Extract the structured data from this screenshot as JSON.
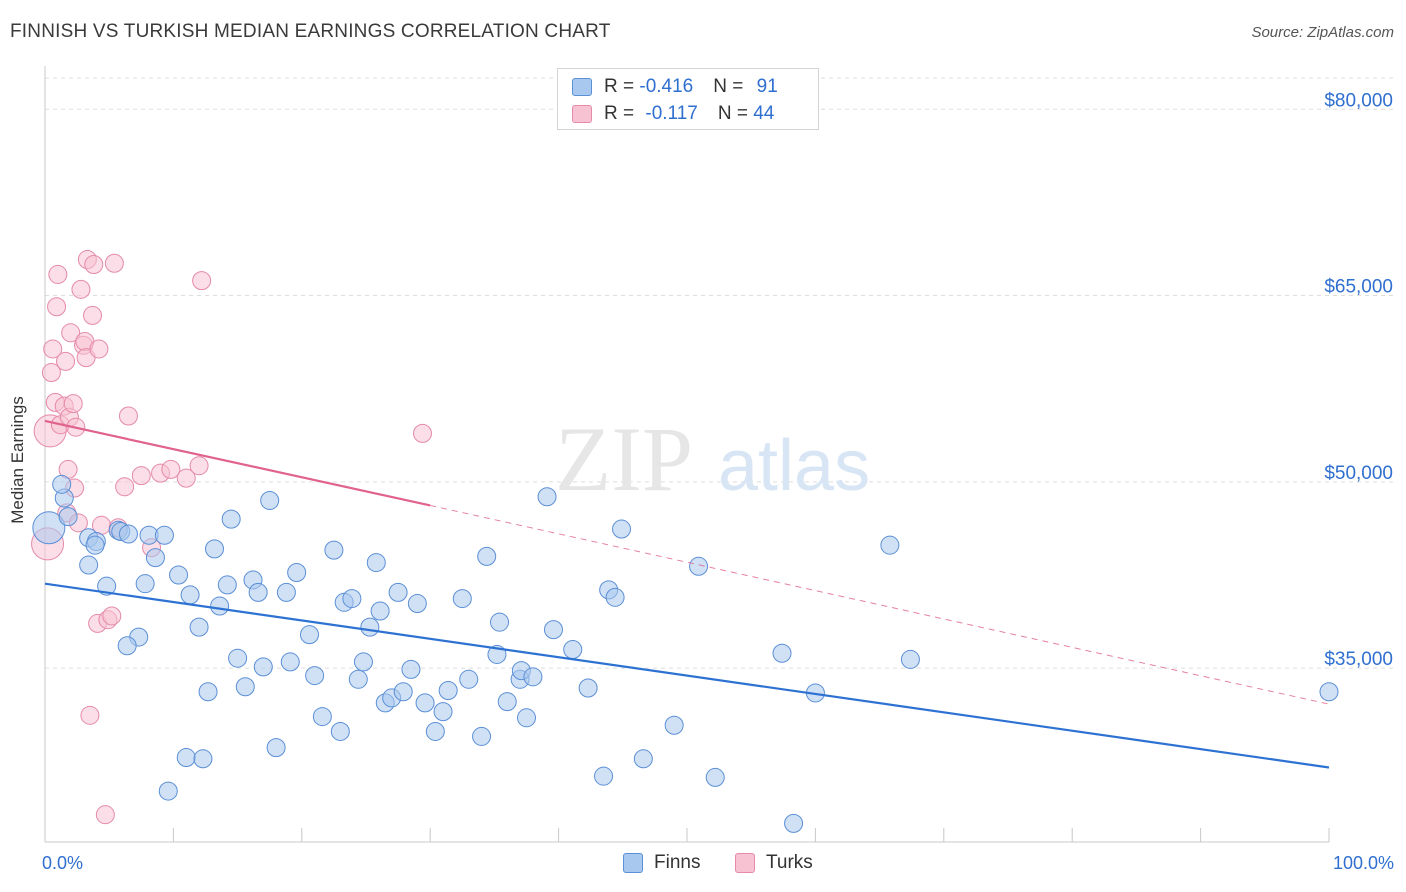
{
  "title": "FINNISH VS TURKISH MEDIAN EARNINGS CORRELATION CHART",
  "source": "Source: ZipAtlas.com",
  "colors": {
    "finns_fill": "#a9c8ef",
    "finns_stroke": "#5b8fd6",
    "finns_line": "#2d72d2",
    "turks_fill": "#f7c3d3",
    "turks_stroke": "#e58aa8",
    "turks_line": "#e0628d",
    "axis_label": "#2f6fd0",
    "grid": "#dddddd"
  },
  "legend": {
    "finns": {
      "r_label": "R = ",
      "r_value": "-0.416",
      "n_label": "N = ",
      "n_value": "91"
    },
    "turks": {
      "r_label": "R = ",
      "r_value": "-0.117",
      "n_label": "N = ",
      "n_value": "44"
    }
  },
  "chart_data": {
    "type": "scatter",
    "xlabel": "",
    "ylabel": "Median Earnings",
    "xlim": [
      0,
      100
    ],
    "ylim": [
      21000,
      83000
    ],
    "x_tick_labels": [
      "0.0%",
      "100.0%"
    ],
    "y_ticks": [
      35000,
      50000,
      65000,
      80000
    ],
    "y_tick_labels": [
      "$35,000",
      "$50,000",
      "$65,000",
      "$80,000"
    ],
    "grid": true,
    "legend_position": "top-center",
    "watermark": "ZIPatlas",
    "series": [
      {
        "name": "Finns",
        "trend": {
          "x": [
            0,
            100
          ],
          "y": [
            41800,
            27000
          ],
          "style": "solid"
        },
        "points": [
          [
            0.3,
            46300
          ],
          [
            1.5,
            48700
          ],
          [
            1.3,
            49800
          ],
          [
            1.8,
            47200
          ],
          [
            3.4,
            43300
          ],
          [
            3.4,
            45500
          ],
          [
            4.0,
            45200
          ],
          [
            3.9,
            44900
          ],
          [
            4.8,
            41600
          ],
          [
            5.7,
            46100
          ],
          [
            5.9,
            46000
          ],
          [
            6.5,
            45800
          ],
          [
            7.3,
            37500
          ],
          [
            6.4,
            36800
          ],
          [
            7.8,
            41800
          ],
          [
            8.1,
            45700
          ],
          [
            8.6,
            43900
          ],
          [
            9.3,
            45700
          ],
          [
            9.6,
            25100
          ],
          [
            10.4,
            42500
          ],
          [
            11.0,
            27800
          ],
          [
            11.3,
            40900
          ],
          [
            12.0,
            38300
          ],
          [
            12.3,
            27700
          ],
          [
            12.7,
            33100
          ],
          [
            13.2,
            44600
          ],
          [
            13.6,
            40000
          ],
          [
            14.2,
            41700
          ],
          [
            14.5,
            47000
          ],
          [
            15.0,
            35800
          ],
          [
            15.6,
            33500
          ],
          [
            16.2,
            42100
          ],
          [
            16.6,
            41100
          ],
          [
            17.0,
            35100
          ],
          [
            17.5,
            48500
          ],
          [
            18.0,
            28600
          ],
          [
            18.8,
            41100
          ],
          [
            19.1,
            35500
          ],
          [
            19.6,
            42700
          ],
          [
            20.6,
            37700
          ],
          [
            21.0,
            34400
          ],
          [
            21.6,
            31100
          ],
          [
            22.5,
            44500
          ],
          [
            23.0,
            29900
          ],
          [
            23.3,
            40300
          ],
          [
            23.9,
            40600
          ],
          [
            24.4,
            34100
          ],
          [
            24.8,
            35500
          ],
          [
            25.3,
            38300
          ],
          [
            25.8,
            43500
          ],
          [
            26.1,
            39600
          ],
          [
            26.5,
            32200
          ],
          [
            27.0,
            32600
          ],
          [
            27.5,
            41100
          ],
          [
            27.9,
            33100
          ],
          [
            28.5,
            34900
          ],
          [
            29.0,
            40200
          ],
          [
            29.6,
            32200
          ],
          [
            30.4,
            29900
          ],
          [
            31.0,
            31500
          ],
          [
            31.4,
            33200
          ],
          [
            32.5,
            40600
          ],
          [
            33.0,
            34100
          ],
          [
            34.0,
            29500
          ],
          [
            34.4,
            44000
          ],
          [
            35.2,
            36100
          ],
          [
            35.4,
            38700
          ],
          [
            36.0,
            32300
          ],
          [
            37.0,
            34100
          ],
          [
            37.1,
            34800
          ],
          [
            37.5,
            31000
          ],
          [
            38.0,
            34300
          ],
          [
            39.1,
            48800
          ],
          [
            39.6,
            38100
          ],
          [
            41.1,
            36500
          ],
          [
            42.3,
            33400
          ],
          [
            43.5,
            26300
          ],
          [
            43.9,
            41300
          ],
          [
            44.4,
            40700
          ],
          [
            44.9,
            46200
          ],
          [
            46.6,
            27700
          ],
          [
            49.0,
            30400
          ],
          [
            50.9,
            43200
          ],
          [
            52.2,
            26200
          ],
          [
            57.4,
            36200
          ],
          [
            58.3,
            22500
          ],
          [
            60.0,
            33000
          ],
          [
            65.8,
            44900
          ],
          [
            67.4,
            35700
          ],
          [
            100.0,
            33100
          ]
        ]
      },
      {
        "name": "Turks",
        "trend": {
          "x": [
            0,
            30
          ],
          "y": [
            54900,
            48100
          ],
          "x_dashed": [
            30,
            100
          ],
          "y_dashed": [
            48100,
            32100
          ],
          "style": "solid+dashed"
        },
        "points": [
          [
            0.2,
            45000
          ],
          [
            0.4,
            54100
          ],
          [
            0.5,
            58800
          ],
          [
            0.6,
            60700
          ],
          [
            0.8,
            56400
          ],
          [
            0.9,
            64100
          ],
          [
            1.0,
            66700
          ],
          [
            1.2,
            54600
          ],
          [
            1.5,
            56100
          ],
          [
            1.6,
            59700
          ],
          [
            1.7,
            47500
          ],
          [
            1.8,
            51000
          ],
          [
            1.9,
            55200
          ],
          [
            2.0,
            62000
          ],
          [
            2.2,
            56300
          ],
          [
            2.3,
            49500
          ],
          [
            2.4,
            54400
          ],
          [
            2.6,
            46700
          ],
          [
            2.8,
            65500
          ],
          [
            3.0,
            61000
          ],
          [
            3.1,
            61300
          ],
          [
            3.2,
            60000
          ],
          [
            3.3,
            67900
          ],
          [
            3.5,
            31200
          ],
          [
            3.7,
            63400
          ],
          [
            3.8,
            67500
          ],
          [
            4.1,
            38600
          ],
          [
            4.2,
            60700
          ],
          [
            4.4,
            46500
          ],
          [
            4.7,
            23200
          ],
          [
            4.9,
            38900
          ],
          [
            5.2,
            39200
          ],
          [
            5.4,
            67600
          ],
          [
            5.7,
            46300
          ],
          [
            6.2,
            49600
          ],
          [
            6.5,
            55300
          ],
          [
            7.5,
            50500
          ],
          [
            8.3,
            44700
          ],
          [
            9.0,
            50700
          ],
          [
            9.8,
            51000
          ],
          [
            11.0,
            50300
          ],
          [
            12.0,
            51300
          ],
          [
            12.2,
            66200
          ],
          [
            29.4,
            53900
          ]
        ]
      }
    ]
  },
  "bottom_legend": {
    "finns_label": "Finns",
    "turks_label": "Turks"
  }
}
